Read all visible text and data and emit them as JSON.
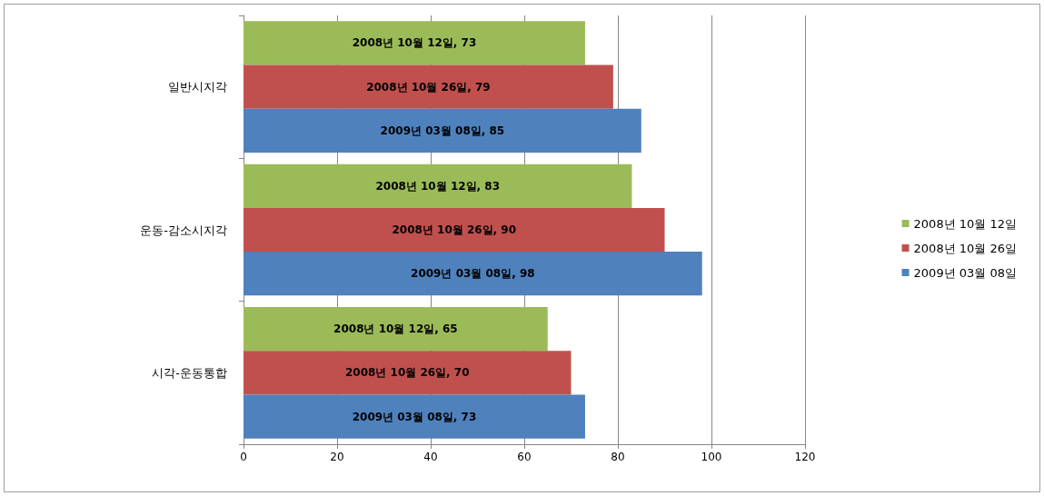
{
  "chart_data": {
    "type": "bar",
    "orientation": "horizontal",
    "categories": [
      "일반시지각",
      "운동-감소시지각",
      "시각-운동통합"
    ],
    "series": [
      {
        "name": "2008년 10월 12일",
        "color": "#9bbb59",
        "values": [
          73,
          83,
          65
        ],
        "value_labels": [
          "2008년 10월 12일, 73",
          "2008년 10월 12일, 83",
          "2008년 10월 12일, 65"
        ]
      },
      {
        "name": "2008년 10월 26일",
        "color": "#c0504d",
        "values": [
          79,
          90,
          70
        ],
        "value_labels": [
          "2008년 10월 26일, 79",
          "2008년 10월 26일, 90",
          "2008년 10월 26일, 70"
        ]
      },
      {
        "name": "2009년 03월 08일",
        "color": "#4f81bd",
        "values": [
          85,
          98,
          73
        ],
        "value_labels": [
          "2009년 03월 08일, 85",
          "2009년 03월 08일, 98",
          "2009년 03월 08일, 73"
        ]
      }
    ],
    "xlim": [
      0,
      120
    ],
    "xticks": [
      0,
      20,
      40,
      60,
      80,
      100,
      120
    ],
    "grid": "x",
    "legend": "right"
  }
}
